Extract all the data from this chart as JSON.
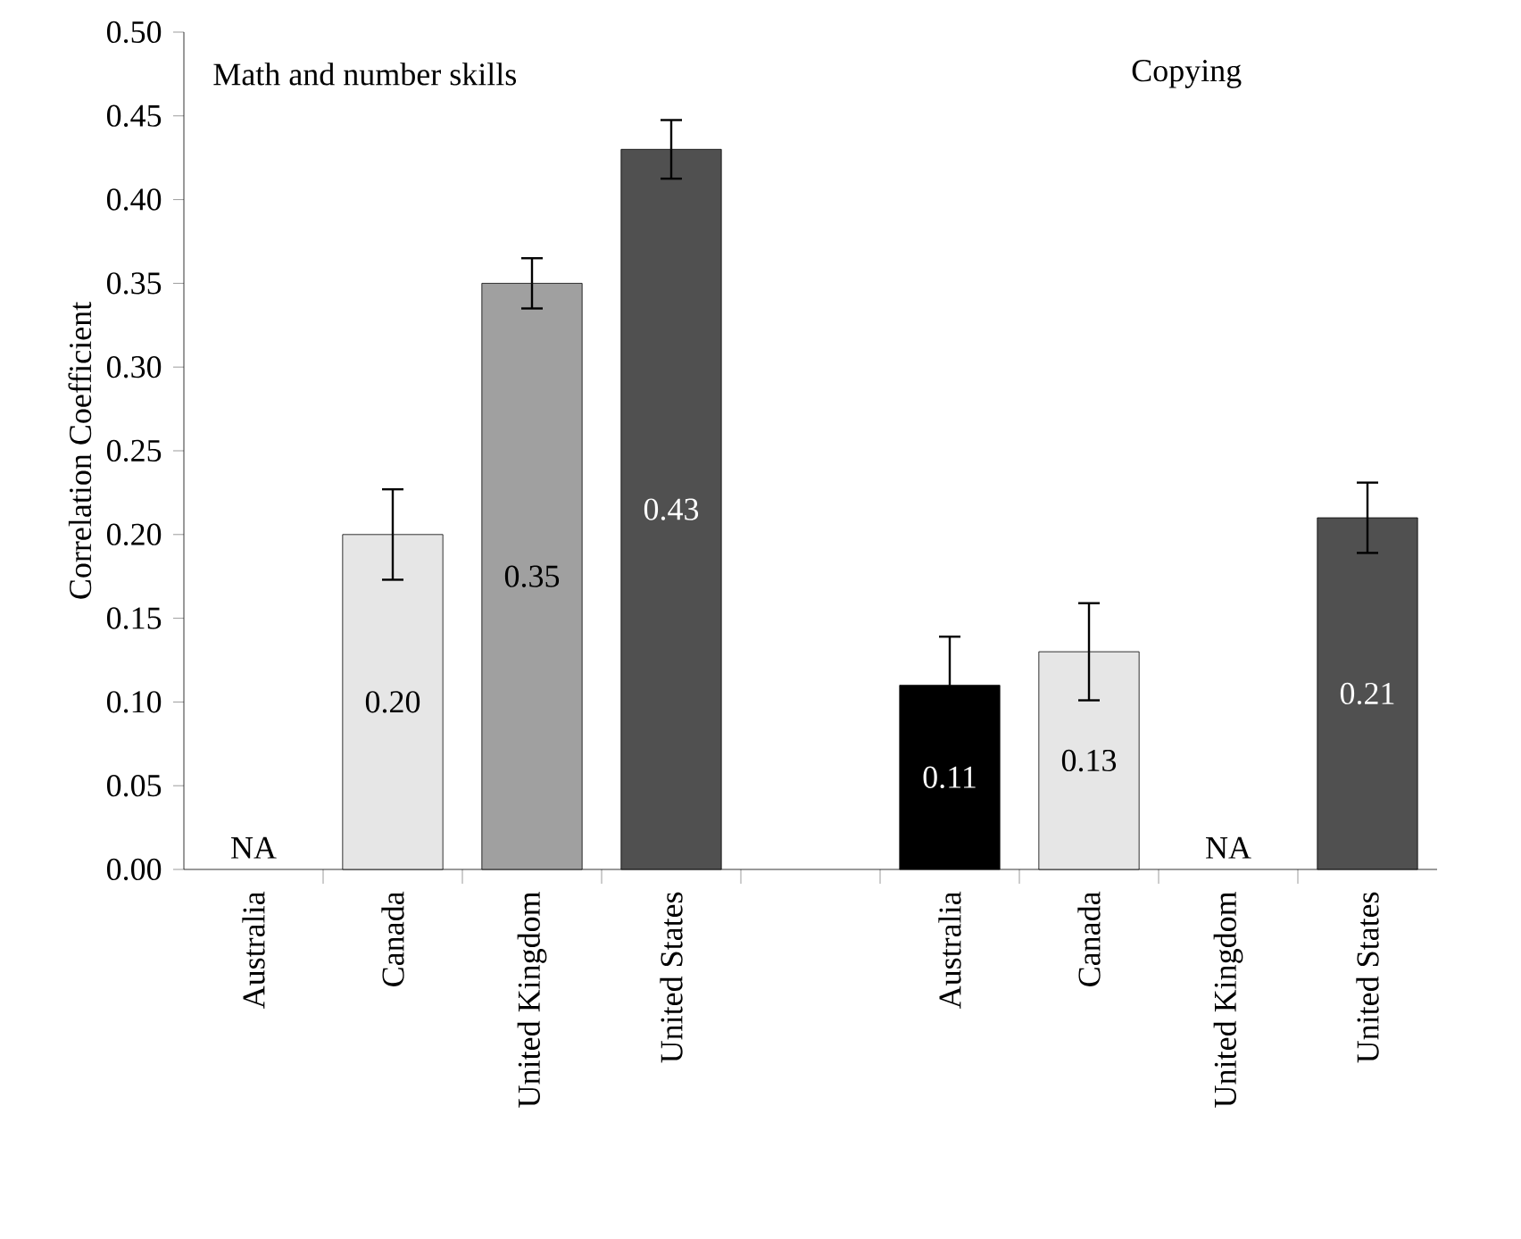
{
  "chart_data": {
    "type": "bar",
    "ylabel": "Correlation Coefficient",
    "categories": [
      "Australia",
      "Canada",
      "United Kingdom",
      "United States",
      null,
      "Australia",
      "Canada",
      "United Kingdom",
      "United States"
    ],
    "values": [
      null,
      0.2,
      0.35,
      0.43,
      null,
      0.11,
      0.13,
      null,
      0.21
    ],
    "errors": [
      null,
      0.027,
      0.015,
      0.0175,
      null,
      0.029,
      0.029,
      null,
      0.021
    ],
    "colors": [
      "#000000",
      "#e6e6e6",
      "#a0a0a0",
      "#505050",
      null,
      "#000000",
      "#e6e6e6",
      "#a0a0a0",
      "#505050"
    ],
    "value_labels": [
      "NA",
      "0.20",
      "0.35",
      "0.43",
      null,
      "0.11",
      "0.13",
      "NA",
      "0.21"
    ],
    "annotations": [
      "Math and number skills",
      "Copying"
    ],
    "ylim": [
      0,
      0.5
    ],
    "yticks": [
      {
        "value": 0,
        "label": "0.00"
      },
      {
        "value": 0.05,
        "label": "0.05"
      },
      {
        "value": 0.1,
        "label": "0.10"
      },
      {
        "value": 0.15,
        "label": "0.15"
      },
      {
        "value": 0.2,
        "label": "0.20"
      },
      {
        "value": 0.25,
        "label": "0.25"
      },
      {
        "value": 0.3,
        "label": "0.30"
      },
      {
        "value": 0.35,
        "label": "0.35"
      },
      {
        "value": 0.4,
        "label": "0.40"
      },
      {
        "value": 0.45,
        "label": "0.45"
      },
      {
        "value": 0.5,
        "label": "0.50"
      }
    ]
  }
}
